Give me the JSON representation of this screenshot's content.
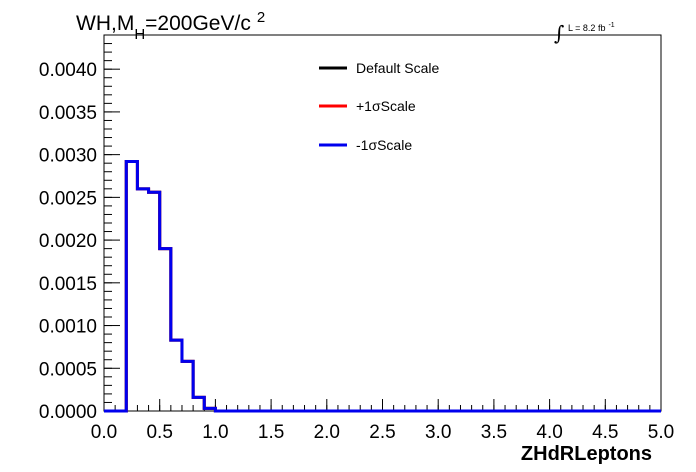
{
  "chart_data": {
    "type": "line",
    "title": {
      "prefix": "WH,M",
      "subscript": "H",
      "main": "=200GeV/c",
      "superscript": "2"
    },
    "luminosity": {
      "symbol": "∫",
      "text": "L = 8.2 fb",
      "superscript": "-1"
    },
    "xlabel": "ZHdRLeptons",
    "ylabel": "",
    "xlim": [
      0.0,
      5.0
    ],
    "ylim": [
      0.0,
      0.0044
    ],
    "x_ticks": [
      "0.0",
      "0.5",
      "1.0",
      "1.5",
      "2.0",
      "2.5",
      "3.0",
      "3.5",
      "4.0",
      "4.5",
      "5.0"
    ],
    "y_ticks": [
      "0.0000",
      "0.0005",
      "0.0010",
      "0.0015",
      "0.0020",
      "0.0025",
      "0.0030",
      "0.0035",
      "0.0040"
    ],
    "bin_edges": [
      0.0,
      0.1,
      0.2,
      0.3,
      0.4,
      0.5,
      0.6,
      0.7,
      0.8,
      0.9,
      1.0,
      1.1,
      1.2,
      1.3,
      1.4,
      1.5,
      1.6,
      1.7,
      1.8,
      1.9,
      2.0,
      2.1,
      2.2,
      2.3,
      2.4,
      2.5,
      2.6,
      2.7,
      2.8,
      2.9,
      3.0,
      3.1,
      3.2,
      3.3,
      3.4,
      3.5,
      3.6,
      3.7,
      3.8,
      3.9,
      4.0,
      4.1,
      4.2,
      4.3,
      4.4,
      4.5,
      4.6,
      4.7,
      4.8,
      4.9,
      5.0
    ],
    "legend_position": "top-center",
    "series": [
      {
        "name": "Default Scale",
        "color": "#000000",
        "values": [
          0,
          0,
          0.00292,
          0.0026,
          0.00256,
          0.0019,
          0.00083,
          0.00058,
          0.00016,
          3e-05,
          0,
          0,
          0,
          0,
          0,
          0,
          0,
          0,
          0,
          0,
          0,
          0,
          0,
          0,
          0,
          0,
          0,
          0,
          0,
          0,
          0,
          0,
          0,
          0,
          0,
          0,
          0,
          0,
          0,
          0,
          0,
          0,
          0,
          0,
          0,
          0,
          0,
          0,
          0,
          0
        ]
      },
      {
        "name": "+1σScale",
        "color": "#ff0000",
        "values": [
          0,
          0,
          0.00292,
          0.0026,
          0.00256,
          0.0019,
          0.00083,
          0.00058,
          0.00016,
          3e-05,
          0,
          0,
          0,
          0,
          0,
          0,
          0,
          0,
          0,
          0,
          0,
          0,
          0,
          0,
          0,
          0,
          0,
          0,
          0,
          0,
          0,
          0,
          0,
          0,
          0,
          0,
          0,
          0,
          0,
          0,
          0,
          0,
          0,
          0,
          0,
          0,
          0,
          0,
          0,
          0
        ]
      },
      {
        "name": "-1σScale",
        "color": "#0000ee",
        "values": [
          0,
          0,
          0.00292,
          0.0026,
          0.00256,
          0.0019,
          0.00083,
          0.00058,
          0.00016,
          3e-05,
          0,
          0,
          0,
          0,
          0,
          0,
          0,
          0,
          0,
          0,
          0,
          0,
          0,
          0,
          0,
          0,
          0,
          0,
          0,
          0,
          0,
          0,
          0,
          0,
          0,
          0,
          0,
          0,
          0,
          0,
          0,
          0,
          0,
          0,
          0,
          0,
          0,
          0,
          0,
          0
        ]
      }
    ]
  }
}
